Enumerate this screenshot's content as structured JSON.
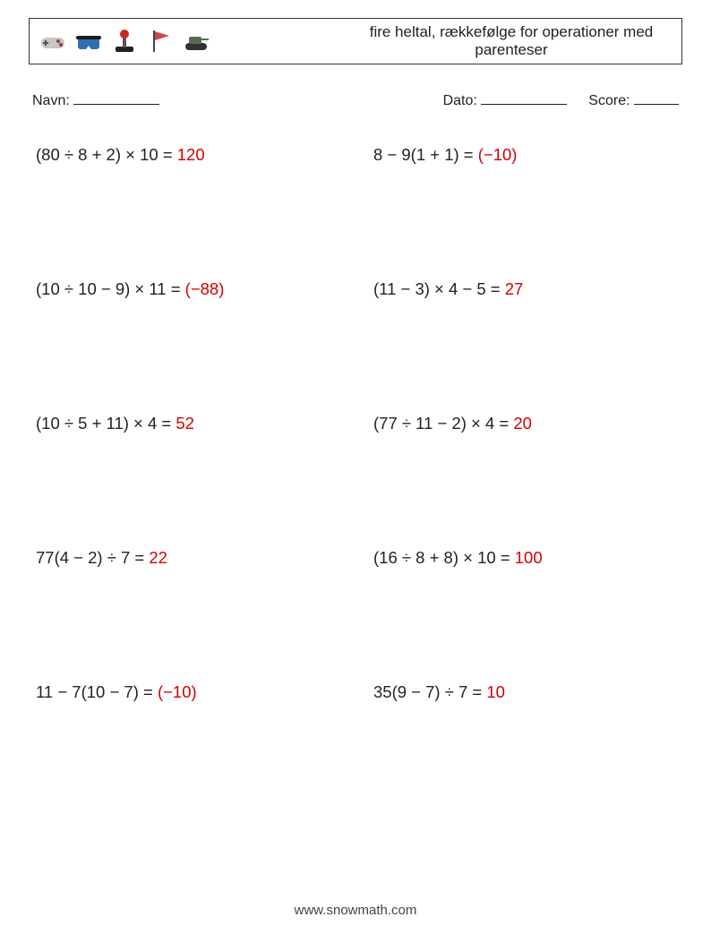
{
  "header": {
    "title": "fire heltal, rækkefølge for operationer med parenteser",
    "icon_colors": {
      "gamepad_body": "#c6c6c6",
      "gamepad_accent": "#9a3b3b",
      "vr_body": "#2e6fb3",
      "vr_strap": "#1c1c1c",
      "joystick_base": "#222",
      "joystick_ball": "#c62828",
      "flag_pole": "#444",
      "flag": "#c62828",
      "tank_body": "#5b6b52",
      "tank_tread": "#333"
    }
  },
  "meta": {
    "name_label": "Navn:",
    "date_label": "Dato:",
    "score_label": "Score:"
  },
  "problems": [
    {
      "expr": "(80 ÷ 8 + 2) × 10 = ",
      "ans": "120"
    },
    {
      "expr": "8 − 9(1 + 1) = ",
      "ans": "(−10)"
    },
    {
      "expr": "(10 ÷ 10 − 9) × 11 = ",
      "ans": "(−88)"
    },
    {
      "expr": "(11 − 3) × 4 − 5 = ",
      "ans": "27"
    },
    {
      "expr": "(10 ÷ 5 + 11) × 4 = ",
      "ans": "52"
    },
    {
      "expr": "(77 ÷ 11 − 2) × 4 = ",
      "ans": "20"
    },
    {
      "expr": "77(4 − 2) ÷ 7 = ",
      "ans": "22"
    },
    {
      "expr": "(16 ÷ 8 + 8) × 10 = ",
      "ans": "100"
    },
    {
      "expr": "11 − 7(10 − 7) = ",
      "ans": "(−10)"
    },
    {
      "expr": "35(9 − 7) ÷ 7 = ",
      "ans": "10"
    }
  ],
  "footer": {
    "text": "www.snowmath.com"
  },
  "style": {
    "page_bg": "#ffffff",
    "text_color": "#222222",
    "answer_color": "#d40000",
    "expr_fontsize": 18.5,
    "title_fontsize": 17,
    "meta_fontsize": 16,
    "footer_fontsize": 15,
    "row_gap": 128,
    "col_gap": 40
  }
}
